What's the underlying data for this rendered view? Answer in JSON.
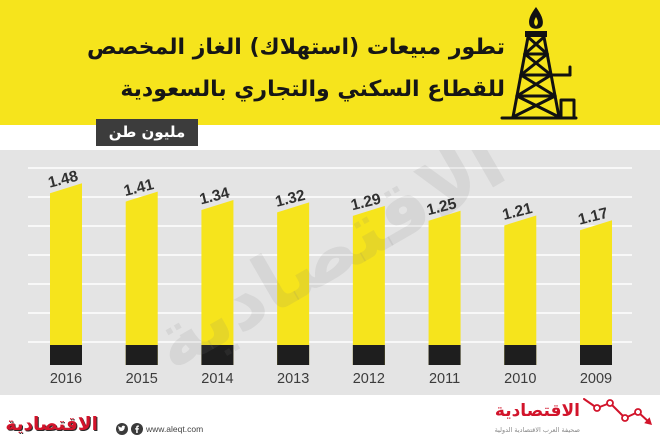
{
  "header": {
    "background_color": "#f6e41c",
    "rig_icon": "gas-rig-icon"
  },
  "watermark": "الاقتصادية",
  "chart_data": {
    "type": "bar",
    "title": "تطور مبيعات (استهلاك) الغاز المخصص\nللقطاع السكني والتجاري بالسعودية",
    "xlabel": "",
    "ylabel": "مليون طن",
    "categories": [
      "2016",
      "2015",
      "2014",
      "2013",
      "2012",
      "2011",
      "2010",
      "2009"
    ],
    "values": [
      1.48,
      1.41,
      1.34,
      1.32,
      1.29,
      1.25,
      1.21,
      1.17
    ],
    "ylim": [
      0,
      1.8
    ],
    "grid": true,
    "bar_color": "#f6e41c",
    "bar_base_color": "#1e1e1e",
    "plot_background": "#e4e4e4",
    "grid_color": "#ffffff"
  },
  "footer": {
    "left_logo": "الاقتصادية",
    "website": "www.aleqt.com",
    "social_icons": [
      "twitter-icon",
      "facebook-icon"
    ],
    "right_logo": "الاقتصادية",
    "right_tagline": "صحيفة العرب الاقتصادية الدولية",
    "trend_icon": "trend-line-icon",
    "accent_color": "#d2142b"
  }
}
